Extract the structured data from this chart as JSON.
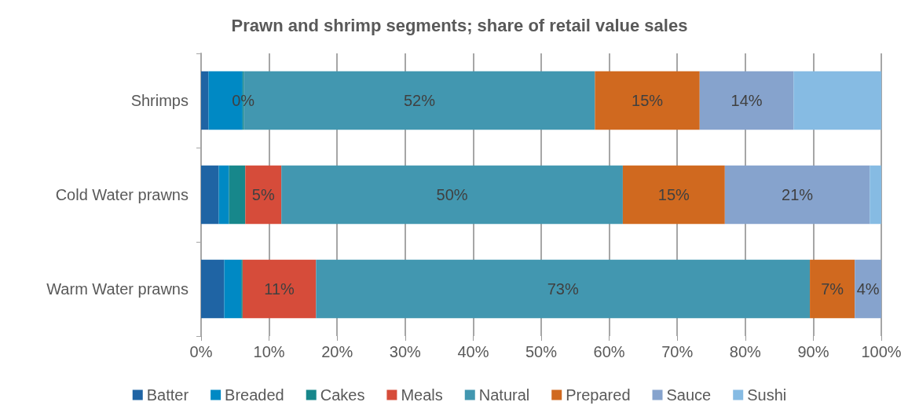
{
  "chart_data": {
    "type": "bar",
    "orientation": "horizontal",
    "stacked": true,
    "title": "Prawn and shrimp segments; share of retail value sales",
    "categories": [
      "Shrimps",
      "Cold Water prawns",
      "Warm Water prawns"
    ],
    "series": [
      {
        "name": "Batter",
        "color": "#1f64a4",
        "values": [
          1.1,
          2.6,
          3.4
        ],
        "value_labels": [
          null,
          null,
          null
        ]
      },
      {
        "name": "Breaded",
        "color": "#0089c4",
        "values": [
          5.0,
          1.5,
          2.5
        ],
        "value_labels": [
          null,
          null,
          null
        ]
      },
      {
        "name": "Cakes",
        "color": "#17878b",
        "values": [
          0.2,
          2.4,
          0.2
        ],
        "value_labels": [
          "0%",
          null,
          null
        ]
      },
      {
        "name": "Meals",
        "color": "#d64c3a",
        "values": [
          0,
          5.3,
          10.8
        ],
        "value_labels": [
          null,
          "5%",
          "11%"
        ]
      },
      {
        "name": "Natural",
        "color": "#4297b0",
        "values": [
          51.6,
          50.2,
          72.6
        ],
        "value_labels": [
          "52%",
          "50%",
          "73%"
        ]
      },
      {
        "name": "Prepared",
        "color": "#d0691f",
        "values": [
          15.4,
          15.0,
          6.6
        ],
        "value_labels": [
          "15%",
          "15%",
          "7%"
        ]
      },
      {
        "name": "Sauce",
        "color": "#86a3cd",
        "values": [
          13.8,
          21.3,
          3.9
        ],
        "value_labels": [
          "14%",
          "21%",
          "4%"
        ]
      },
      {
        "name": "Sushi",
        "color": "#86bbe3",
        "values": [
          12.9,
          1.7,
          0
        ],
        "value_labels": [
          null,
          null,
          null
        ]
      }
    ],
    "xlim": [
      0,
      100
    ],
    "xticks": [
      {
        "value": 0,
        "label": "0%"
      },
      {
        "value": 10,
        "label": "10%"
      },
      {
        "value": 20,
        "label": "20%"
      },
      {
        "value": 30,
        "label": "30%"
      },
      {
        "value": 40,
        "label": "40%"
      },
      {
        "value": 50,
        "label": "50%"
      },
      {
        "value": 60,
        "label": "60%"
      },
      {
        "value": 70,
        "label": "70%"
      },
      {
        "value": 80,
        "label": "80%"
      },
      {
        "value": 90,
        "label": "90%"
      },
      {
        "value": 100,
        "label": "100%"
      }
    ],
    "grid": "x",
    "legend": "bottom"
  }
}
